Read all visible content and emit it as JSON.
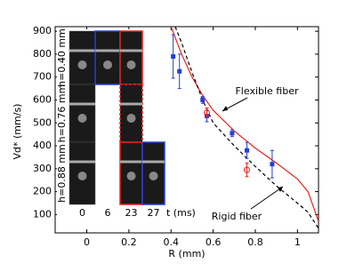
{
  "chart_data": {
    "type": "line",
    "x_label": "R (mm)",
    "y_label": "Vd* (mm/s)",
    "xlim": [
      -0.15,
      1.1
    ],
    "ylim": [
      20,
      920
    ],
    "xticks": [
      0,
      0.2,
      0.4,
      0.6,
      0.8,
      1
    ],
    "yticks": [
      100,
      200,
      300,
      400,
      500,
      600,
      700,
      800,
      900
    ],
    "series": [
      {
        "name": "Flexible fiber",
        "color": "#e8221b",
        "dash": false,
        "x": [
          0.4,
          0.45,
          0.5,
          0.55,
          0.6,
          0.7,
          0.8,
          0.9,
          1.0,
          1.05,
          1.1
        ],
        "values": [
          920,
          800,
          700,
          620,
          555,
          465,
          390,
          325,
          255,
          200,
          70
        ]
      },
      {
        "name": "Rigid fiber",
        "color": "#000000",
        "dash": true,
        "x": [
          0.42,
          0.45,
          0.5,
          0.55,
          0.6,
          0.7,
          0.8,
          0.9,
          1.0,
          1.05,
          1.1
        ],
        "values": [
          920,
          850,
          720,
          600,
          500,
          400,
          310,
          225,
          150,
          110,
          40
        ]
      }
    ],
    "points": [
      {
        "color": "#2540d8",
        "marker": "square",
        "x": [
          0.41,
          0.44,
          0.55,
          0.57,
          0.69,
          0.76,
          0.88
        ],
        "values": [
          790,
          725,
          600,
          530,
          455,
          380,
          320
        ],
        "errors": [
          95,
          75,
          15,
          25,
          15,
          35,
          60
        ]
      },
      {
        "color": "#e8221b",
        "marker": "circle",
        "x": [
          0.57,
          0.76
        ],
        "values": [
          545,
          295
        ],
        "errors": [
          20,
          30
        ]
      }
    ],
    "inset": {
      "rows": [
        "h=0.40 mm",
        "h=0.76 mm",
        "h=0.88 mm"
      ],
      "times": [
        "0",
        "6",
        "23",
        "27"
      ],
      "time_label": "t (ms)"
    }
  }
}
